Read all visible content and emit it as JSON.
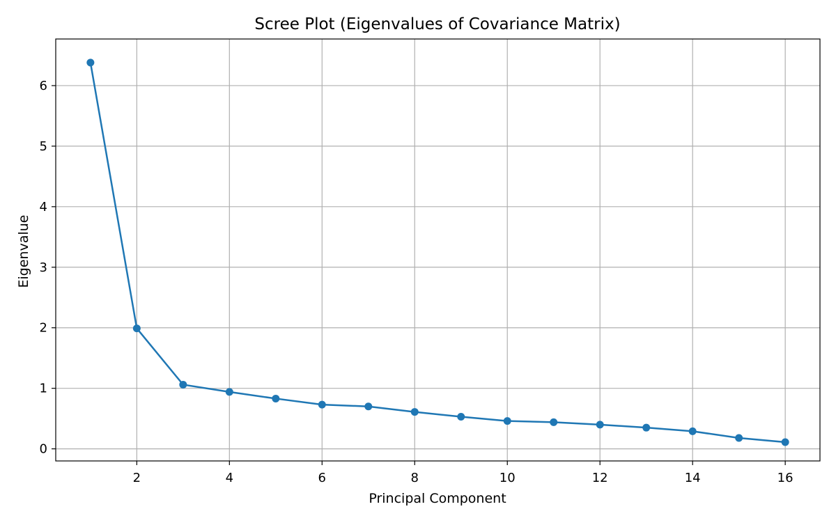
{
  "chart_data": {
    "type": "line",
    "title": "Scree Plot (Eigenvalues of Covariance Matrix)",
    "xlabel": "Principal Component",
    "ylabel": "Eigenvalue",
    "x": [
      1,
      2,
      3,
      4,
      5,
      6,
      7,
      8,
      9,
      10,
      11,
      12,
      13,
      14,
      15,
      16
    ],
    "series": [
      {
        "values": [
          6.38,
          1.99,
          1.06,
          0.94,
          0.83,
          0.73,
          0.7,
          0.61,
          0.53,
          0.46,
          0.44,
          0.4,
          0.35,
          0.29,
          0.18,
          0.11
        ],
        "color": "#1f77b4",
        "marker": "circle"
      }
    ],
    "xlim": [
      0.25,
      16.75
    ],
    "ylim": [
      -0.2,
      6.77
    ],
    "xticks": [
      2,
      4,
      6,
      8,
      10,
      12,
      14,
      16
    ],
    "yticks": [
      0,
      1,
      2,
      3,
      4,
      5,
      6
    ],
    "grid": true
  }
}
